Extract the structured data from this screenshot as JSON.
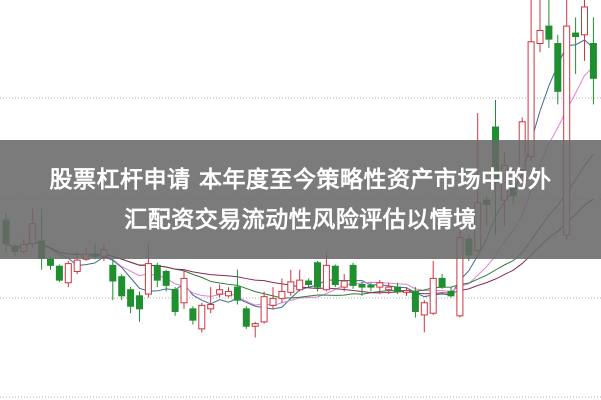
{
  "banner": {
    "line1": "股票杠杆申请 本年度至今策略性资产市场中的外",
    "line2": "汇配资交易流动性风险评估以情境"
  },
  "colors": {
    "up": "#d0343f",
    "down": "#1f8f2f",
    "grid": "#b0b0b0",
    "ma5": "#3a6f8a",
    "ma10": "#e080d8",
    "ma20": "#2f7a3a",
    "ma30": "#8a2a55",
    "banner_bg": "#696969"
  },
  "chart_data": {
    "type": "candlestick",
    "title": "",
    "grid": "horizontal dotted",
    "moving_averages": [
      5,
      10,
      20,
      30
    ],
    "ohlc": [
      [
        207,
        180,
        215,
        170
      ],
      [
        177,
        171,
        180,
        165
      ],
      [
        171,
        179,
        185,
        168
      ],
      [
        180,
        203,
        220,
        175
      ],
      [
        183,
        163,
        220,
        150
      ],
      [
        162,
        155,
        165,
        150
      ],
      [
        154,
        138,
        156,
        136
      ],
      [
        135,
        157,
        160,
        130
      ],
      [
        148,
        161,
        170,
        145
      ],
      [
        162,
        168,
        175,
        160
      ],
      [
        168,
        165,
        180,
        162
      ],
      [
        165,
        173,
        180,
        160
      ],
      [
        155,
        137,
        162,
        115
      ],
      [
        142,
        120,
        145,
        115
      ],
      [
        127,
        108,
        130,
        100
      ],
      [
        120,
        105,
        125,
        90
      ],
      [
        122,
        157,
        180,
        118
      ],
      [
        155,
        138,
        158,
        130
      ],
      [
        148,
        132,
        150,
        125
      ],
      [
        127,
        102,
        130,
        97
      ],
      [
        112,
        140,
        150,
        105
      ],
      [
        105,
        92,
        108,
        87
      ],
      [
        82,
        109,
        112,
        78
      ],
      [
        105,
        110,
        130,
        100
      ],
      [
        122,
        127,
        133,
        118
      ],
      [
        120,
        125,
        130,
        118
      ],
      [
        130,
        115,
        150,
        110
      ],
      [
        105,
        85,
        108,
        82
      ],
      [
        85,
        88,
        90,
        72
      ],
      [
        90,
        119,
        125,
        88
      ],
      [
        109,
        117,
        130,
        105
      ],
      [
        117,
        125,
        140,
        112
      ],
      [
        124,
        136,
        150,
        120
      ],
      [
        127,
        138,
        150,
        125
      ],
      [
        137,
        133,
        140,
        130
      ],
      [
        158,
        130,
        160,
        125
      ],
      [
        127,
        155,
        170,
        125
      ],
      [
        154,
        133,
        156,
        130
      ],
      [
        130,
        137,
        145,
        125
      ],
      [
        155,
        132,
        158,
        128
      ],
      [
        133,
        130,
        136,
        120
      ],
      [
        132,
        130,
        135,
        125
      ],
      [
        130,
        135,
        138,
        122
      ],
      [
        127,
        130,
        135,
        122
      ],
      [
        130,
        125,
        135,
        122
      ],
      [
        124,
        126,
        130,
        120
      ],
      [
        125,
        102,
        130,
        95
      ],
      [
        98,
        112,
        115,
        78
      ],
      [
        100,
        140,
        160,
        98
      ],
      [
        140,
        130,
        145,
        128
      ],
      [
        125,
        120,
        130,
        118
      ],
      [
        97,
        187,
        195,
        95
      ],
      [
        185,
        167,
        190,
        160
      ],
      [
        172,
        227,
        330,
        170
      ],
      [
        230,
        225,
        235,
        200
      ],
      [
        314,
        250,
        345,
        190
      ],
      [
        230,
        270,
        285,
        200
      ],
      [
        245,
        235,
        255,
        225
      ],
      [
        265,
        320,
        325,
        255
      ],
      [
        280,
        412,
        460,
        275
      ],
      [
        410,
        425,
        460,
        400
      ],
      [
        430,
        415,
        460,
        405
      ],
      [
        410,
        355,
        420,
        340
      ],
      [
        190,
        430,
        460,
        185
      ],
      [
        422,
        418,
        440,
        375
      ],
      [
        420,
        452,
        460,
        390
      ],
      [
        410,
        370,
        440,
        340
      ]
    ]
  }
}
